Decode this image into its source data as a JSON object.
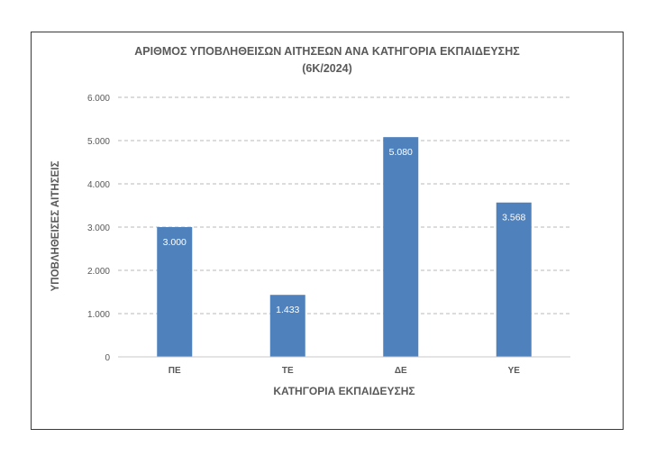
{
  "chart_data": {
    "type": "bar",
    "title": "ΑΡΙΘΜΟΣ ΥΠΟΒΛΗΘΕΙΣΩΝ ΑΙΤΗΣΕΩΝ ΑΝΑ ΚΑΤΗΓΟΡΙΑ ΕΚΠΑΙΔΕΥΣΗΣ",
    "subtitle": "(6Κ/2024)",
    "xlabel": "ΚΑΤΗΓΟΡΙΑ ΕΚΠΑΙΔΕΥΣΗΣ",
    "ylabel": "ΥΠΟΒΛΗΘΕΙΣΕΣ ΑΙΤΗΣΕΙΣ",
    "categories": [
      "ΠΕ",
      "ΤΕ",
      "ΔΕ",
      "ΥΕ"
    ],
    "values": [
      3000,
      1433,
      5080,
      3568
    ],
    "value_labels": [
      "3.000",
      "1.433",
      "5.080",
      "3.568"
    ],
    "ylim": [
      0,
      6000
    ],
    "yticks": [
      0,
      1000,
      2000,
      3000,
      4000,
      5000,
      6000
    ],
    "ytick_labels": [
      "0",
      "1.000",
      "2.000",
      "3.000",
      "4.000",
      "5.000",
      "6.000"
    ],
    "grid": true,
    "legend": "none",
    "bar_color": "#4f81bd",
    "data_label_color": "#ffffff"
  }
}
